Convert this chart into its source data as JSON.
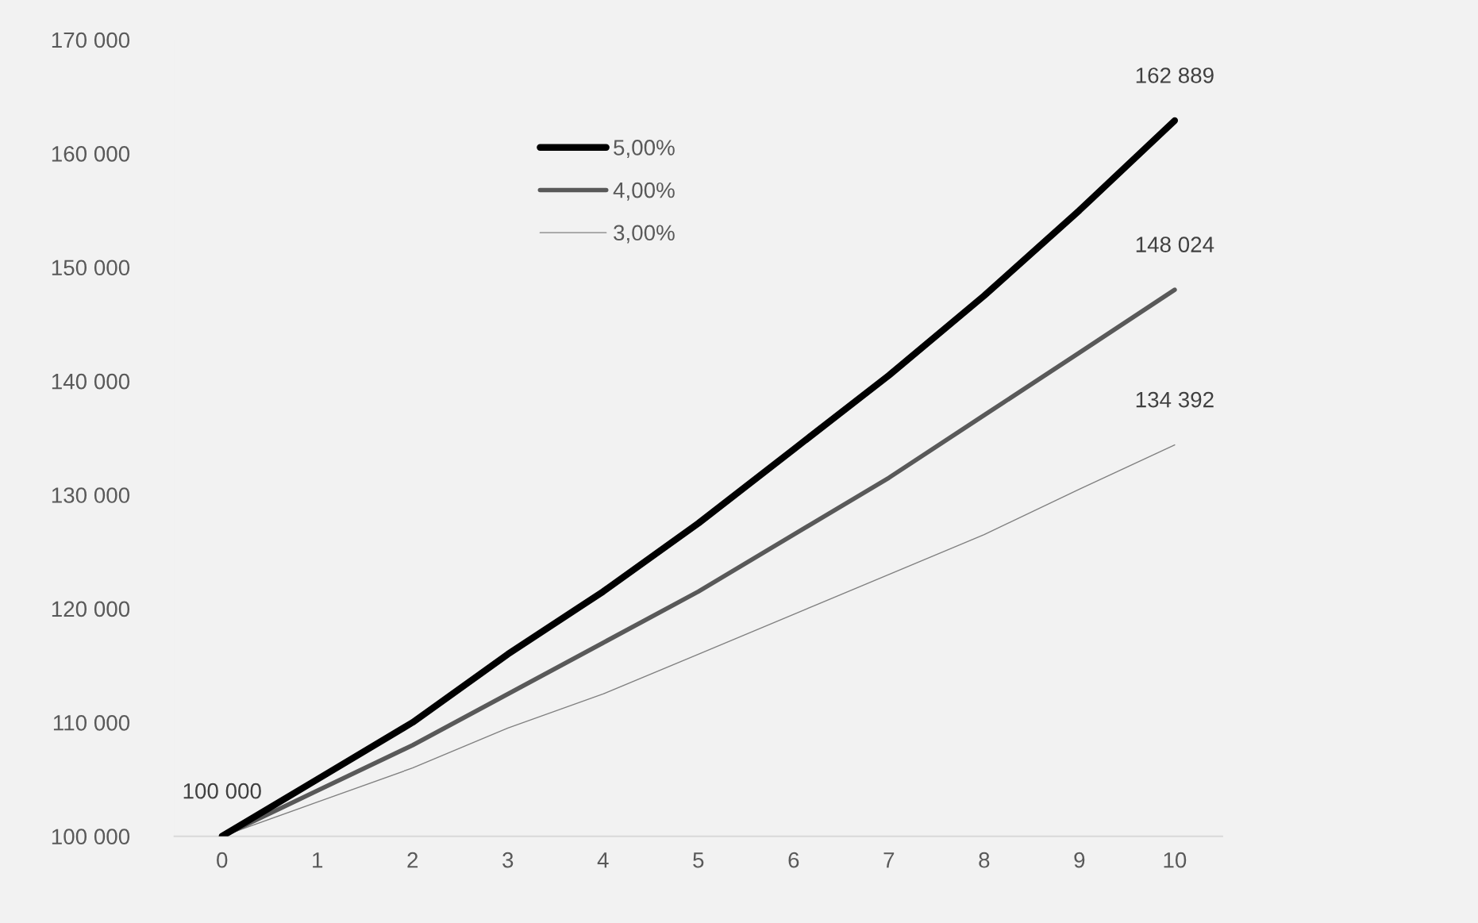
{
  "chart_data": {
    "type": "line",
    "categories": [
      "0",
      "1",
      "2",
      "3",
      "4",
      "5",
      "6",
      "7",
      "8",
      "9",
      "10"
    ],
    "series": [
      {
        "name": "5,00%",
        "color": "#000000",
        "values": [
          100000,
          105000,
          110000,
          116000,
          121500,
          127500,
          134000,
          140500,
          147500,
          155000,
          162889
        ],
        "value_labels": [
          "100 000",
          null,
          null,
          null,
          null,
          null,
          null,
          null,
          null,
          null,
          "162 889"
        ]
      },
      {
        "name": "4,00%",
        "color": "#595959",
        "values": [
          100000,
          104000,
          108000,
          112500,
          117000,
          121500,
          126500,
          131500,
          137000,
          142500,
          148024
        ],
        "value_labels": [
          null,
          null,
          null,
          null,
          null,
          null,
          null,
          null,
          null,
          null,
          "148 024"
        ]
      },
      {
        "name": "3,00%",
        "color": "#808080",
        "values": [
          100000,
          103000,
          106000,
          109500,
          112500,
          116000,
          119500,
          123000,
          126500,
          130500,
          134392
        ],
        "value_labels": [
          null,
          null,
          null,
          null,
          null,
          null,
          null,
          null,
          null,
          null,
          "134 392"
        ]
      }
    ],
    "ylim": [
      100000,
      170000
    ],
    "yticks": [
      {
        "value": 100000,
        "label": "100 000"
      },
      {
        "value": 110000,
        "label": "110 000"
      },
      {
        "value": 120000,
        "label": "120 000"
      },
      {
        "value": 130000,
        "label": "130 000"
      },
      {
        "value": 140000,
        "label": "140 000"
      },
      {
        "value": 150000,
        "label": "150 000"
      },
      {
        "value": 160000,
        "label": "160 000"
      },
      {
        "value": 170000,
        "label": "170 000"
      }
    ],
    "grid": false,
    "legend": "top left",
    "marker": "none",
    "line_style": "solid"
  }
}
